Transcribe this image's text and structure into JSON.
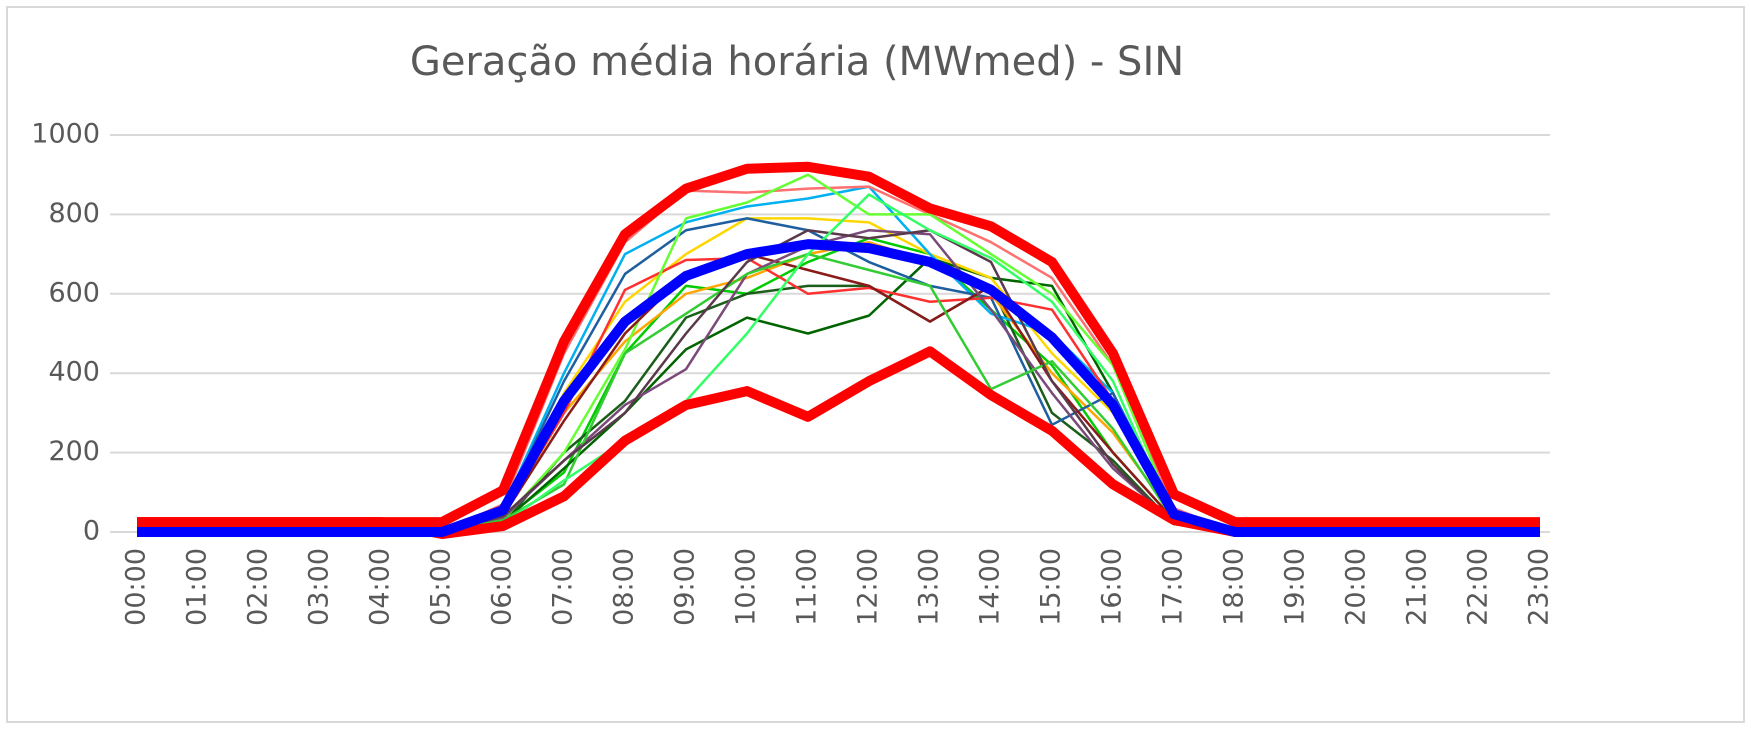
{
  "chart_data": {
    "type": "line",
    "title": "Geração média horária (MWmed) - SIN",
    "categories": [
      "00:00",
      "01:00",
      "02:00",
      "03:00",
      "04:00",
      "05:00",
      "06:00",
      "07:00",
      "08:00",
      "09:00",
      "10:00",
      "11:00",
      "12:00",
      "13:00",
      "14:00",
      "15:00",
      "16:00",
      "17:00",
      "18:00",
      "19:00",
      "20:00",
      "21:00",
      "22:00",
      "23:00"
    ],
    "ylim": [
      0,
      1000
    ],
    "yticks": [
      0,
      200,
      400,
      600,
      800,
      1000
    ],
    "grid": true,
    "series": [
      {
        "color": "#00cc00",
        "width": 2.5,
        "values": [
          0,
          0,
          0,
          0,
          0,
          0,
          30,
          150,
          450,
          620,
          600,
          680,
          740,
          700,
          560,
          420,
          200,
          30,
          0,
          0,
          0,
          0,
          0,
          0
        ]
      },
      {
        "color": "#1a5e1a",
        "width": 2.5,
        "values": [
          0,
          0,
          0,
          0,
          0,
          0,
          20,
          200,
          330,
          540,
          600,
          620,
          620,
          530,
          620,
          300,
          180,
          20,
          0,
          0,
          0,
          0,
          0,
          0
        ]
      },
      {
        "color": "#006400",
        "width": 2.5,
        "values": [
          0,
          0,
          0,
          0,
          0,
          0,
          25,
          160,
          300,
          460,
          540,
          500,
          545,
          690,
          640,
          620,
          350,
          30,
          0,
          0,
          0,
          0,
          0,
          0
        ]
      },
      {
        "color": "#ffa500",
        "width": 2.5,
        "values": [
          0,
          0,
          0,
          0,
          0,
          0,
          40,
          300,
          480,
          600,
          640,
          700,
          730,
          680,
          600,
          400,
          250,
          40,
          0,
          0,
          0,
          0,
          0,
          0
        ]
      },
      {
        "color": "#ffd700",
        "width": 2.5,
        "values": [
          0,
          0,
          0,
          0,
          0,
          0,
          50,
          350,
          580,
          700,
          790,
          790,
          780,
          700,
          640,
          450,
          300,
          50,
          0,
          0,
          0,
          0,
          0,
          0
        ]
      },
      {
        "color": "#00b0f0",
        "width": 2.5,
        "values": [
          0,
          0,
          0,
          0,
          0,
          0,
          60,
          400,
          700,
          780,
          820,
          840,
          870,
          700,
          550,
          500,
          350,
          50,
          0,
          0,
          0,
          0,
          0,
          0
        ]
      },
      {
        "color": "#1f5fa0",
        "width": 2.5,
        "values": [
          0,
          0,
          0,
          0,
          0,
          0,
          55,
          380,
          650,
          760,
          790,
          760,
          680,
          620,
          590,
          270,
          350,
          40,
          0,
          0,
          0,
          0,
          0,
          0
        ]
      },
      {
        "color": "#ff7070",
        "width": 2.5,
        "values": [
          0,
          0,
          0,
          0,
          0,
          0,
          70,
          450,
          730,
          860,
          855,
          865,
          870,
          800,
          730,
          640,
          420,
          60,
          0,
          0,
          0,
          0,
          0,
          0
        ]
      },
      {
        "color": "#ff3030",
        "width": 2.5,
        "values": [
          0,
          0,
          0,
          0,
          0,
          0,
          45,
          300,
          610,
          685,
          690,
          600,
          615,
          580,
          590,
          560,
          330,
          35,
          0,
          0,
          0,
          0,
          0,
          0
        ]
      },
      {
        "color": "#66ff33",
        "width": 2.5,
        "values": [
          0,
          0,
          0,
          0,
          0,
          0,
          30,
          200,
          460,
          790,
          830,
          900,
          800,
          800,
          700,
          600,
          420,
          40,
          0,
          0,
          0,
          0,
          0,
          0
        ]
      },
      {
        "color": "#8b1a1a",
        "width": 2.5,
        "values": [
          0,
          0,
          0,
          0,
          0,
          0,
          40,
          280,
          500,
          650,
          700,
          660,
          620,
          530,
          620,
          380,
          200,
          30,
          0,
          0,
          0,
          0,
          0,
          0
        ]
      },
      {
        "color": "#7a4a7a",
        "width": 2.5,
        "values": [
          0,
          0,
          0,
          0,
          0,
          0,
          35,
          180,
          320,
          410,
          650,
          720,
          760,
          750,
          560,
          350,
          160,
          25,
          0,
          0,
          0,
          0,
          0,
          0
        ]
      },
      {
        "color": "#33cc33",
        "width": 2.5,
        "values": [
          0,
          0,
          0,
          0,
          0,
          0,
          30,
          120,
          450,
          550,
          650,
          700,
          660,
          620,
          360,
          430,
          260,
          30,
          0,
          0,
          0,
          0,
          0,
          0
        ]
      },
      {
        "color": "#5a3a4a",
        "width": 2.5,
        "values": [
          0,
          0,
          0,
          0,
          0,
          0,
          40,
          180,
          300,
          500,
          680,
          760,
          740,
          760,
          680,
          380,
          170,
          20,
          0,
          0,
          0,
          0,
          0,
          0
        ]
      },
      {
        "color": "#33ff66",
        "width": 2.5,
        "values": [
          0,
          0,
          0,
          0,
          0,
          0,
          20,
          130,
          230,
          330,
          500,
          700,
          850,
          760,
          690,
          580,
          380,
          30,
          0,
          0,
          0,
          0,
          0,
          0
        ]
      },
      {
        "color": "#ff0000",
        "width": 10,
        "values": [
          25,
          25,
          25,
          25,
          25,
          25,
          105,
          480,
          750,
          865,
          915,
          920,
          895,
          815,
          770,
          680,
          450,
          95,
          25,
          25,
          25,
          25,
          25,
          25
        ]
      },
      {
        "color": "#ff0000",
        "width": 10,
        "values": [
          25,
          25,
          25,
          25,
          25,
          -5,
          15,
          90,
          230,
          320,
          355,
          290,
          380,
          455,
          345,
          255,
          120,
          30,
          0,
          0,
          0,
          0,
          0,
          0
        ]
      },
      {
        "color": "#0000ff",
        "width": 10,
        "values": [
          0,
          0,
          0,
          0,
          0,
          0,
          55,
          330,
          530,
          645,
          700,
          725,
          715,
          680,
          610,
          490,
          320,
          45,
          0,
          0,
          0,
          0,
          0,
          0
        ]
      }
    ]
  }
}
